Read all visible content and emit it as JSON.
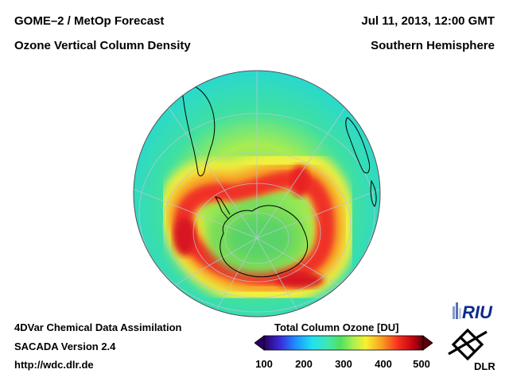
{
  "header": {
    "title_left_1": "GOME–2 / MetOp Forecast",
    "title_left_2": "Ozone Vertical Column Density",
    "title_right_1": "Jul 11, 2013, 12:00 GMT",
    "title_right_2": "Southern Hemisphere"
  },
  "footer": {
    "line1": "4DVar Chemical Data Assimilation",
    "line2": "SACADA Version 2.4",
    "line3": "http://wdc.dlr.de"
  },
  "colorbar": {
    "title": "Total Column Ozone [DU]",
    "ticks": [
      "100",
      "200",
      "300",
      "400",
      "500"
    ],
    "range": [
      100,
      500
    ],
    "colors": [
      "#2a0060",
      "#3a2ad8",
      "#1e90ff",
      "#20e0f0",
      "#40e8b0",
      "#50e060",
      "#a8f050",
      "#f8f030",
      "#f8a020",
      "#f83020",
      "#c00010",
      "#5a0008"
    ]
  },
  "logos": {
    "riu": "RIU",
    "dlr": "DLR"
  }
}
